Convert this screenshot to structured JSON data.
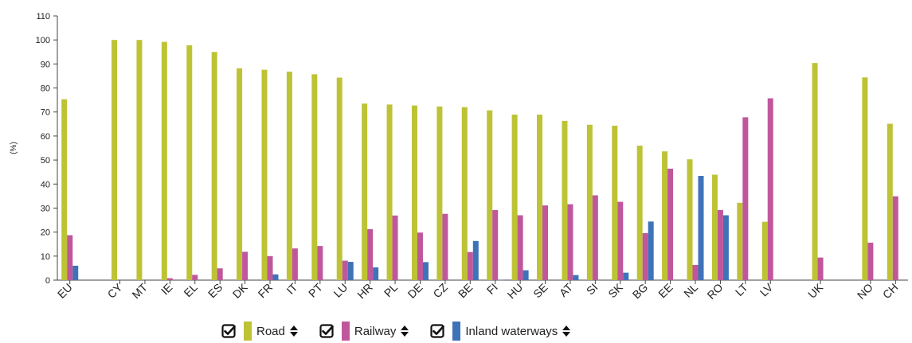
{
  "chart_data": {
    "type": "bar",
    "title": "",
    "xlabel": "",
    "ylabel": "(%)",
    "ylim": [
      0,
      110
    ],
    "yticks": [
      0,
      10,
      20,
      30,
      40,
      50,
      60,
      70,
      80,
      90,
      100,
      110
    ],
    "grid": false,
    "legend_position": "bottom",
    "categories": [
      "EU",
      "CY",
      "MT",
      "IE",
      "EL",
      "ES",
      "DK",
      "FR",
      "IT",
      "PT",
      "LU",
      "HR",
      "PL",
      "DE",
      "CZ",
      "BE",
      "FI",
      "HU",
      "SE",
      "AT",
      "SI",
      "SK",
      "BG",
      "EE",
      "NL",
      "RO",
      "LT",
      "LV",
      "UK",
      "NO",
      "CH"
    ],
    "series": [
      {
        "name": "Road",
        "color": "#bdc335",
        "values": [
          75.3,
          100,
          100,
          99.2,
          97.8,
          95,
          88.2,
          87.6,
          86.8,
          85.7,
          84.3,
          73.5,
          73.1,
          72.7,
          72.3,
          72,
          70.7,
          68.9,
          68.9,
          66.3,
          64.7,
          64.3,
          56,
          53.6,
          50.3,
          43.9,
          32.2,
          24.3,
          90.4,
          84.4,
          65.1
        ]
      },
      {
        "name": "Railway",
        "color": "#c0579d",
        "values": [
          18.7,
          0,
          0,
          0.8,
          2.2,
          4.9,
          11.8,
          10,
          13.2,
          14.2,
          8.1,
          21.2,
          26.9,
          19.8,
          27.6,
          11.7,
          29.2,
          27,
          31.1,
          31.6,
          35.3,
          32.6,
          19.6,
          46.4,
          6.3,
          29.2,
          67.8,
          75.7,
          9.4,
          15.6,
          34.9
        ]
      },
      {
        "name": "Inland waterways",
        "color": "#3e73b8",
        "values": [
          6,
          0,
          0,
          0,
          0,
          0,
          0,
          2.4,
          0,
          0,
          7.6,
          5.3,
          0,
          7.5,
          0,
          16.3,
          0.1,
          4.1,
          0,
          2.1,
          0,
          3.1,
          24.4,
          0,
          43.4,
          27,
          0,
          0,
          0,
          0,
          0
        ]
      }
    ]
  },
  "legend": {
    "items": [
      {
        "label": "Road",
        "color": "#bdc335",
        "icon": "checked-box-icon",
        "sort_icon": "sort-icon"
      },
      {
        "label": "Railway",
        "color": "#c0579d",
        "icon": "checked-box-icon",
        "sort_icon": "sort-icon"
      },
      {
        "label": "Inland waterways",
        "color": "#3e73b8",
        "icon": "checked-box-icon",
        "sort_icon": "sort-icon"
      }
    ]
  }
}
